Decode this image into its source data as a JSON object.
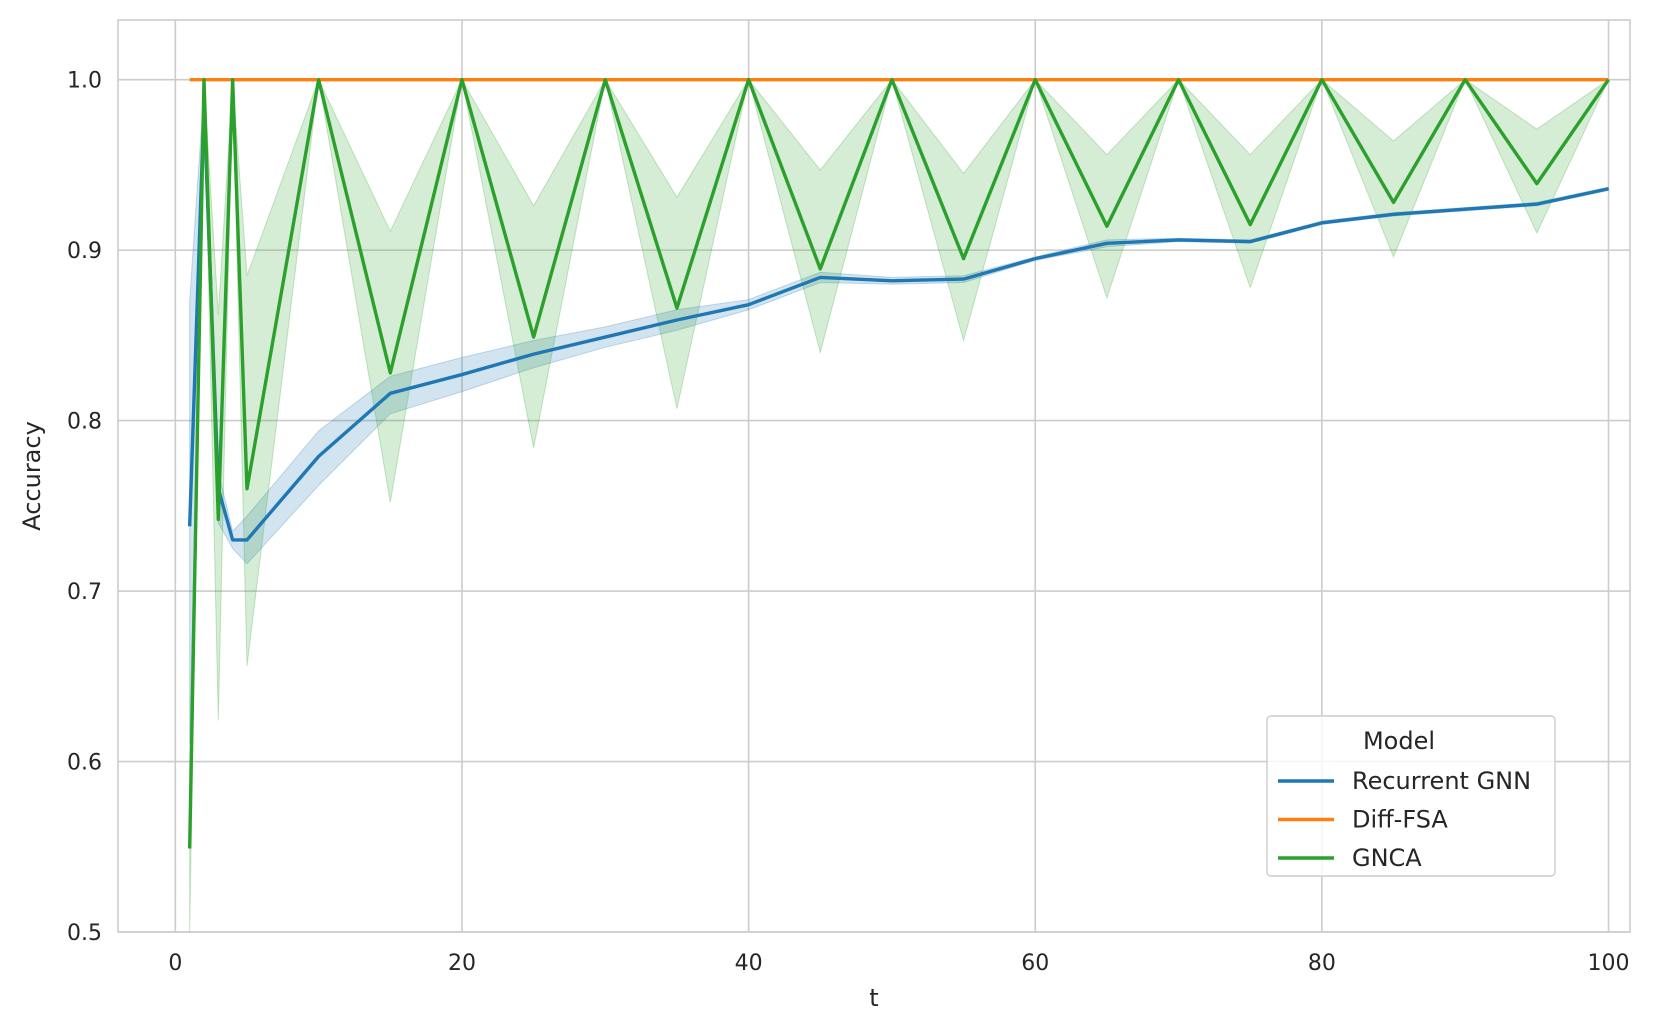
{
  "chart_data": {
    "type": "line",
    "title": "",
    "xlabel": "t",
    "ylabel": "Accuracy",
    "xlim": [
      -4,
      101.5
    ],
    "ylim": [
      0.5,
      1.035
    ],
    "xticks": [
      0,
      20,
      40,
      60,
      80,
      100
    ],
    "xtick_labels": [
      "0",
      "20",
      "40",
      "60",
      "80",
      "100"
    ],
    "yticks": [
      0.5,
      0.6,
      0.7,
      0.8,
      0.9,
      1.0
    ],
    "ytick_labels": [
      "0.5",
      "0.6",
      "0.7",
      "0.8",
      "0.9",
      "1.0"
    ],
    "grid": true,
    "legend": {
      "title": "Model",
      "placement": "lower-right",
      "entries": [
        "Recurrent GNN",
        "Diff-FSA",
        "GNCA"
      ]
    },
    "series": [
      {
        "name": "Recurrent GNN",
        "color": "#1f77b4",
        "x": [
          1,
          2,
          3,
          4,
          5,
          10,
          15,
          20,
          25,
          30,
          35,
          40,
          45,
          50,
          55,
          60,
          65,
          70,
          75,
          80,
          85,
          90,
          95,
          100
        ],
        "y": [
          0.738,
          0.985,
          0.76,
          0.73,
          0.73,
          0.779,
          0.816,
          0.827,
          0.839,
          0.849,
          0.859,
          0.868,
          0.884,
          0.882,
          0.883,
          0.895,
          0.904,
          0.906,
          0.905,
          0.916,
          0.921,
          0.924,
          0.927,
          0.936
        ],
        "ci_low": [
          0.61,
          0.975,
          0.74,
          0.725,
          0.716,
          0.762,
          0.804,
          0.817,
          0.831,
          0.843,
          0.853,
          0.865,
          0.881,
          0.88,
          0.881,
          0.894,
          0.902,
          0.905,
          0.904,
          0.915,
          0.92,
          0.923,
          0.926,
          0.935
        ],
        "ci_high": [
          0.87,
          0.995,
          0.77,
          0.735,
          0.744,
          0.794,
          0.826,
          0.837,
          0.847,
          0.855,
          0.865,
          0.871,
          0.887,
          0.884,
          0.885,
          0.896,
          0.906,
          0.907,
          0.906,
          0.917,
          0.922,
          0.925,
          0.928,
          0.937
        ]
      },
      {
        "name": "Diff-FSA",
        "color": "#ff7f0e",
        "x": [
          1,
          100
        ],
        "y": [
          1.0,
          1.0
        ]
      },
      {
        "name": "GNCA",
        "color": "#2ca02c",
        "x": [
          1,
          2,
          3,
          4,
          5,
          10,
          15,
          20,
          25,
          30,
          35,
          40,
          45,
          50,
          55,
          60,
          65,
          70,
          75,
          80,
          85,
          90,
          95,
          100
        ],
        "y": [
          0.549,
          1.0,
          0.742,
          1.0,
          0.76,
          1.0,
          0.828,
          1.0,
          0.849,
          1.0,
          0.866,
          1.0,
          0.889,
          1.0,
          0.895,
          1.0,
          0.914,
          1.0,
          0.915,
          1.0,
          0.928,
          1.0,
          0.939,
          1.0
        ],
        "ci_low": [
          0.5,
          1.0,
          0.624,
          1.0,
          0.656,
          1.0,
          0.752,
          1.0,
          0.784,
          1.0,
          0.807,
          1.0,
          0.84,
          1.0,
          0.847,
          1.0,
          0.872,
          1.0,
          0.878,
          1.0,
          0.896,
          1.0,
          0.91,
          1.0
        ],
        "ci_high": [
          0.6,
          1.0,
          0.862,
          1.0,
          0.885,
          1.0,
          0.911,
          1.0,
          0.926,
          1.0,
          0.931,
          1.0,
          0.947,
          1.0,
          0.945,
          1.0,
          0.956,
          1.0,
          0.956,
          1.0,
          0.964,
          1.0,
          0.971,
          1.0
        ]
      }
    ]
  }
}
